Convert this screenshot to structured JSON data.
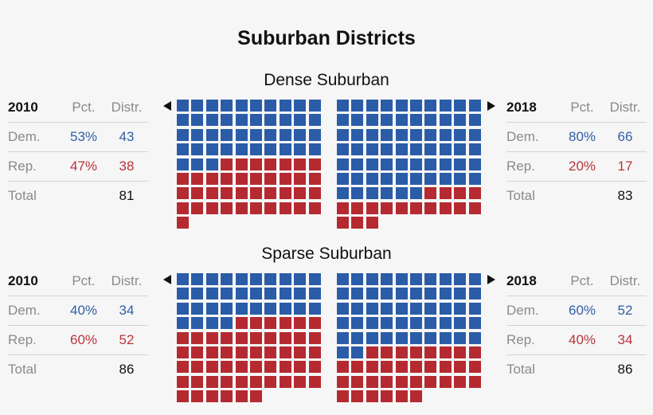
{
  "title": "Suburban Districts",
  "colors": {
    "dem": "#2a5ca8",
    "rep": "#b52a30"
  },
  "chart_data": {
    "type": "waffle",
    "title": "Suburban Districts",
    "columns": {
      "pct": "Pct.",
      "distr": "Distr."
    },
    "panels": [
      {
        "name": "Dense Suburban",
        "left": {
          "year": "2010",
          "pct_header": "Pct.",
          "dist_header": "Distr.",
          "dem_label": "Dem.",
          "dem_pct": "53%",
          "dem_dist": "43",
          "rep_label": "Rep.",
          "rep_pct": "47%",
          "rep_dist": "38",
          "total_label": "Total",
          "total": "81"
        },
        "right": {
          "year": "2018",
          "pct_header": "Pct.",
          "dist_header": "Distr.",
          "dem_label": "Dem.",
          "dem_pct": "80%",
          "dem_dist": "66",
          "rep_label": "Rep.",
          "rep_pct": "20%",
          "rep_dist": "17",
          "total_label": "Total",
          "total": "83"
        }
      },
      {
        "name": "Sparse Suburban",
        "left": {
          "year": "2010",
          "pct_header": "Pct.",
          "dist_header": "Distr.",
          "dem_label": "Dem.",
          "dem_pct": "40%",
          "dem_dist": "34",
          "rep_label": "Rep.",
          "rep_pct": "60%",
          "rep_dist": "52",
          "total_label": "Total",
          "total": "86"
        },
        "right": {
          "year": "2018",
          "pct_header": "Pct.",
          "dist_header": "Distr.",
          "dem_label": "Dem.",
          "dem_pct": "60%",
          "dem_dist": "52",
          "rep_label": "Rep.",
          "rep_pct": "40%",
          "rep_dist": "34",
          "total_label": "Total",
          "total": "86"
        }
      }
    ]
  }
}
